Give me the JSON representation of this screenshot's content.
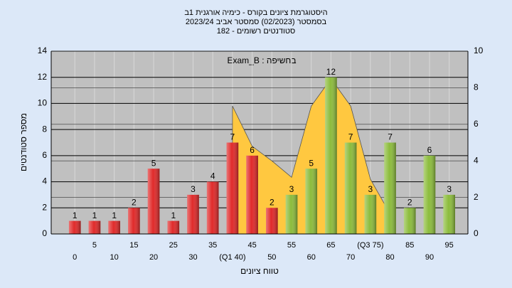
{
  "chart_data": {
    "type": "bar",
    "title": "היסטוגרמת ציונים בקורס - כימיה אורגנית 1ב",
    "subtitle": "בסמסטר  (02/2023)  סמסטר אביב 2023/24",
    "subtitle2": "סטודנטים רשומים - 182",
    "annotation": "בחשיפה : Exam_B",
    "ylabel": "מספר סטודנטים",
    "xlabel": "טווח ציונים",
    "categories": [
      "0",
      "5",
      "10",
      "15",
      "20",
      "25",
      "30",
      "35",
      "(Q1 40)",
      "45",
      "50",
      "55",
      "60",
      "65",
      "70",
      "(Q3 75)",
      "80",
      "85",
      "90",
      "95"
    ],
    "series": [
      {
        "type": "bar",
        "values": [
          1,
          1,
          1,
          2,
          5,
          1,
          3,
          4,
          7,
          6,
          2,
          3,
          5,
          12,
          7,
          3,
          7,
          2,
          6,
          3
        ],
        "colors": [
          "#e02a2a",
          "#e02a2a",
          "#e02a2a",
          "#e02a2a",
          "#e02a2a",
          "#e02a2a",
          "#e02a2a",
          "#e02a2a",
          "#e02a2a",
          "#e02a2a",
          "#e02a2a",
          "#8cbc3c",
          "#8cbc3c",
          "#8cbc3c",
          "#8cbc3c",
          "#8cbc3c",
          "#8cbc3c",
          "#8cbc3c",
          "#8cbc3c",
          "#8cbc3c"
        ]
      },
      {
        "type": "area",
        "axis": "y2",
        "color": "#ffc840",
        "values": [
          null,
          null,
          null,
          null,
          null,
          null,
          null,
          null,
          7,
          4.8,
          4,
          3.1,
          7,
          8.5,
          7,
          3,
          1.1,
          null,
          null,
          null
        ]
      }
    ],
    "ylim": [
      0,
      14
    ],
    "yticks": [
      0,
      2,
      4,
      6,
      8,
      10,
      12,
      14
    ],
    "y2lim": [
      0,
      10
    ],
    "y2ticks": [
      0,
      2,
      4,
      6,
      8,
      10
    ],
    "grid": true
  }
}
